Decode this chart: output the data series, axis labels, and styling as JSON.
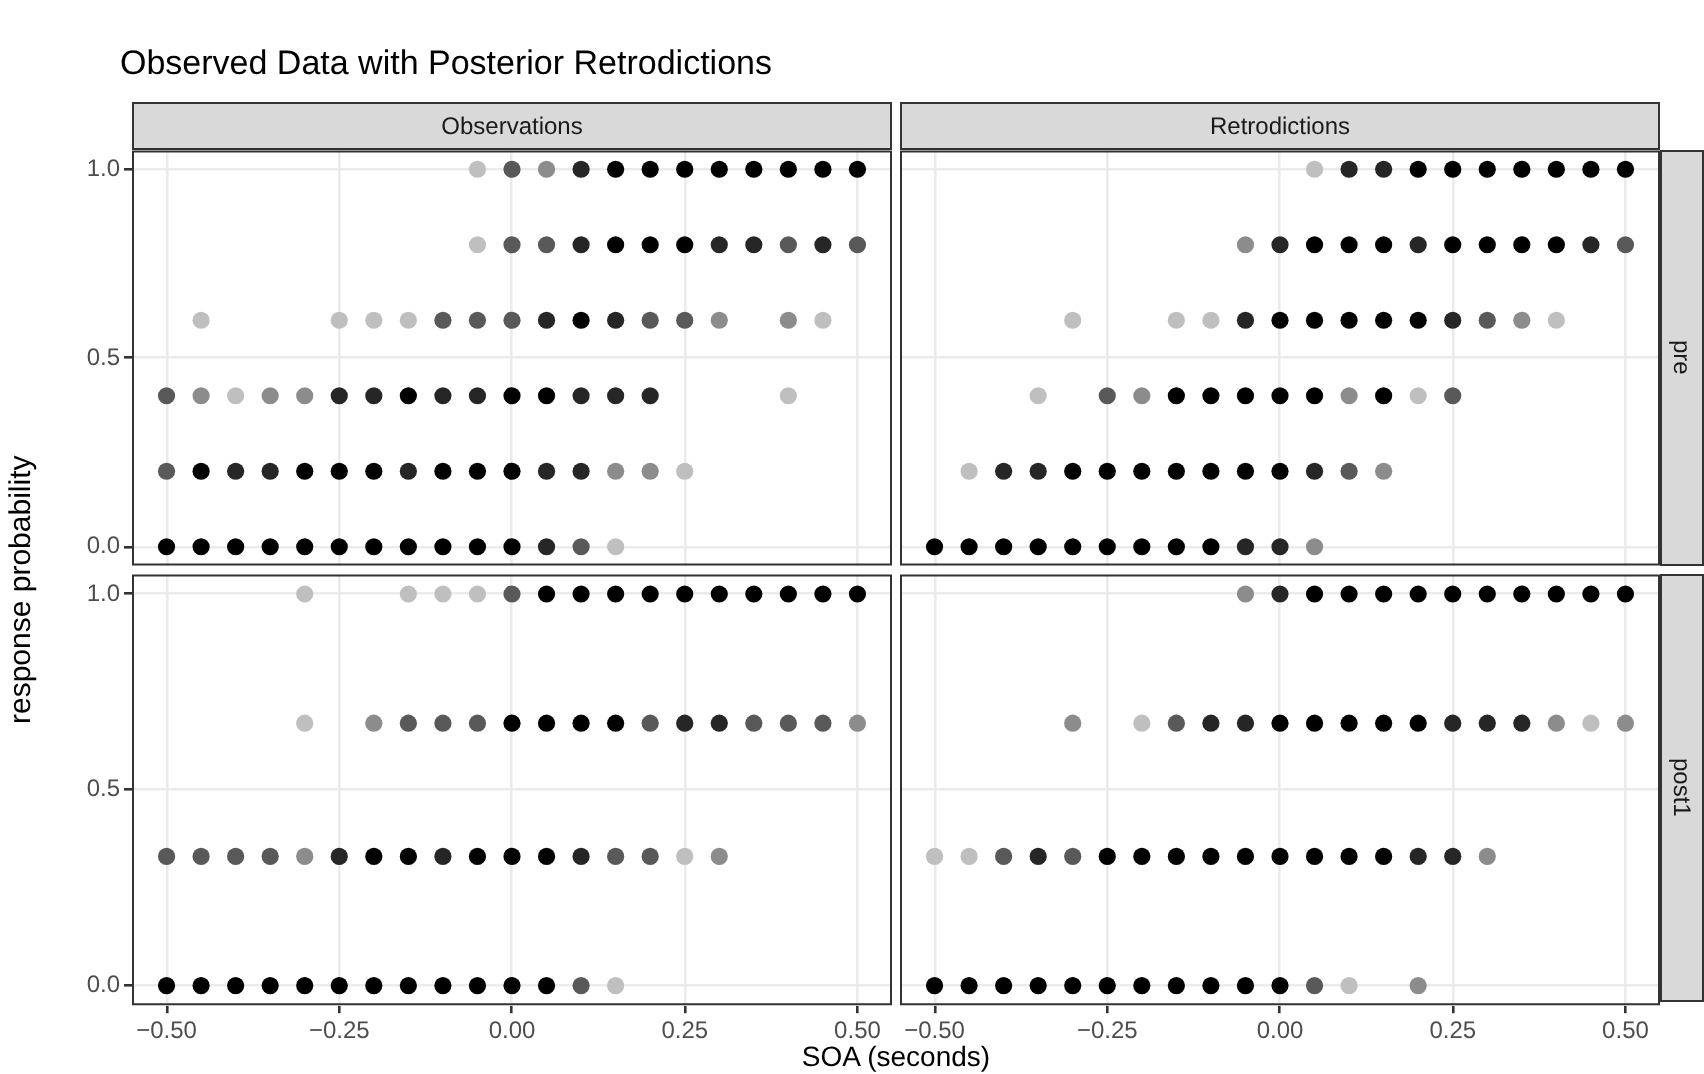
{
  "chart_data": [
    {
      "type": "scatter",
      "title": "Observed Data with Posterior Retrodictions",
      "subtitle": "Observations",
      "marker": "circle",
      "grid": true,
      "tick_labels": "y",
      "xlim": [
        -0.55,
        0.55
      ],
      "ylim": [
        -0.05,
        1.05
      ],
      "xticks": [
        {
          "value": -0.5,
          "label": null
        },
        {
          "value": -0.25,
          "label": null
        },
        {
          "value": 0,
          "label": null
        },
        {
          "value": 0.25,
          "label": null
        },
        {
          "value": 0.5,
          "label": null
        }
      ],
      "yticks": [
        {
          "value": 0,
          "label": "0.0"
        },
        {
          "value": 0.5,
          "label": "0.5"
        },
        {
          "value": 1,
          "label": "1.0"
        }
      ],
      "series": [
        {
          "x": [
            -0.05,
            0,
            0.05,
            0.1,
            0.15,
            0.2,
            0.25,
            0.3,
            0.35,
            0.4,
            0.45,
            0.5
          ],
          "values": [
            1,
            1,
            1,
            1,
            1,
            1,
            1,
            1,
            1,
            1,
            1,
            1
          ],
          "colors": [
            "#bfbfbf",
            "#595959",
            "#8c8c8c",
            "#262626",
            "#000000",
            "#000000",
            "#000000",
            "#000000",
            "#000000",
            "#000000",
            "#000000",
            "#000000"
          ]
        },
        {
          "x": [
            -0.05,
            0,
            0.05,
            0.1,
            0.15,
            0.2,
            0.25,
            0.3,
            0.35,
            0.4,
            0.45,
            0.5
          ],
          "values": [
            0.8,
            0.8,
            0.8,
            0.8,
            0.8,
            0.8,
            0.8,
            0.8,
            0.8,
            0.8,
            0.8,
            0.8
          ],
          "colors": [
            "#bfbfbf",
            "#595959",
            "#595959",
            "#262626",
            "#000000",
            "#000000",
            "#000000",
            "#262626",
            "#262626",
            "#595959",
            "#262626",
            "#595959"
          ]
        },
        {
          "x": [
            -0.45,
            -0.25,
            -0.2,
            -0.15,
            -0.1,
            -0.05,
            0,
            0.05,
            0.1,
            0.15,
            0.2,
            0.25,
            0.3,
            0.4,
            0.45
          ],
          "values": [
            0.6,
            0.6,
            0.6,
            0.6,
            0.6,
            0.6,
            0.6,
            0.6,
            0.6,
            0.6,
            0.6,
            0.6,
            0.6,
            0.6,
            0.6
          ],
          "colors": [
            "#bfbfbf",
            "#bfbfbf",
            "#bfbfbf",
            "#bfbfbf",
            "#595959",
            "#595959",
            "#595959",
            "#262626",
            "#000000",
            "#262626",
            "#595959",
            "#595959",
            "#8c8c8c",
            "#8c8c8c",
            "#bfbfbf"
          ]
        },
        {
          "x": [
            -0.5,
            -0.45,
            -0.4,
            -0.35,
            -0.3,
            -0.25,
            -0.2,
            -0.15,
            -0.1,
            -0.05,
            0,
            0.05,
            0.1,
            0.15,
            0.2,
            0.4
          ],
          "values": [
            0.4,
            0.4,
            0.4,
            0.4,
            0.4,
            0.4,
            0.4,
            0.4,
            0.4,
            0.4,
            0.4,
            0.4,
            0.4,
            0.4,
            0.4,
            0.4
          ],
          "colors": [
            "#595959",
            "#8c8c8c",
            "#bfbfbf",
            "#8c8c8c",
            "#8c8c8c",
            "#262626",
            "#262626",
            "#000000",
            "#262626",
            "#262626",
            "#000000",
            "#000000",
            "#262626",
            "#262626",
            "#262626",
            "#bfbfbf"
          ]
        },
        {
          "x": [
            -0.5,
            -0.45,
            -0.4,
            -0.35,
            -0.3,
            -0.25,
            -0.2,
            -0.15,
            -0.1,
            -0.05,
            0,
            0.05,
            0.1,
            0.15,
            0.2,
            0.25
          ],
          "values": [
            0.2,
            0.2,
            0.2,
            0.2,
            0.2,
            0.2,
            0.2,
            0.2,
            0.2,
            0.2,
            0.2,
            0.2,
            0.2,
            0.2,
            0.2,
            0.2
          ],
          "colors": [
            "#595959",
            "#000000",
            "#262626",
            "#262626",
            "#000000",
            "#000000",
            "#000000",
            "#262626",
            "#000000",
            "#000000",
            "#000000",
            "#262626",
            "#262626",
            "#8c8c8c",
            "#8c8c8c",
            "#bfbfbf"
          ]
        },
        {
          "x": [
            -0.5,
            -0.45,
            -0.4,
            -0.35,
            -0.3,
            -0.25,
            -0.2,
            -0.15,
            -0.1,
            -0.05,
            0,
            0.05,
            0.1,
            0.15
          ],
          "values": [
            0,
            0,
            0,
            0,
            0,
            0,
            0,
            0,
            0,
            0,
            0,
            0,
            0,
            0
          ],
          "colors": [
            "#000000",
            "#000000",
            "#000000",
            "#000000",
            "#000000",
            "#000000",
            "#000000",
            "#000000",
            "#000000",
            "#000000",
            "#000000",
            "#262626",
            "#595959",
            "#bfbfbf"
          ]
        }
      ]
    },
    {
      "type": "scatter",
      "subtitle": "Retrodictions",
      "y2label": "pre",
      "marker": "circle",
      "grid": true,
      "tick_labels": false,
      "xlim": [
        -0.55,
        0.55
      ],
      "ylim": [
        -0.05,
        1.05
      ],
      "xticks": [
        {
          "value": -0.5,
          "label": null
        },
        {
          "value": -0.25,
          "label": null
        },
        {
          "value": 0,
          "label": null
        },
        {
          "value": 0.25,
          "label": null
        },
        {
          "value": 0.5,
          "label": null
        }
      ],
      "yticks": [
        {
          "value": 0,
          "label": null
        },
        {
          "value": 0.5,
          "label": null
        },
        {
          "value": 1,
          "label": null
        }
      ],
      "series": [
        {
          "x": [
            0.05,
            0.1,
            0.15,
            0.2,
            0.25,
            0.3,
            0.35,
            0.4,
            0.45,
            0.5
          ],
          "values": [
            1,
            1,
            1,
            1,
            1,
            1,
            1,
            1,
            1,
            1
          ],
          "colors": [
            "#bfbfbf",
            "#262626",
            "#262626",
            "#000000",
            "#000000",
            "#000000",
            "#000000",
            "#000000",
            "#000000",
            "#000000"
          ]
        },
        {
          "x": [
            -0.05,
            0,
            0.05,
            0.1,
            0.15,
            0.2,
            0.25,
            0.3,
            0.35,
            0.4,
            0.45,
            0.5
          ],
          "values": [
            0.8,
            0.8,
            0.8,
            0.8,
            0.8,
            0.8,
            0.8,
            0.8,
            0.8,
            0.8,
            0.8,
            0.8
          ],
          "colors": [
            "#8c8c8c",
            "#262626",
            "#000000",
            "#000000",
            "#000000",
            "#262626",
            "#000000",
            "#000000",
            "#000000",
            "#000000",
            "#262626",
            "#595959"
          ]
        },
        {
          "x": [
            -0.3,
            -0.15,
            -0.1,
            -0.05,
            0,
            0.05,
            0.1,
            0.15,
            0.2,
            0.25,
            0.3,
            0.35,
            0.4
          ],
          "values": [
            0.6,
            0.6,
            0.6,
            0.6,
            0.6,
            0.6,
            0.6,
            0.6,
            0.6,
            0.6,
            0.6,
            0.6,
            0.6
          ],
          "colors": [
            "#bfbfbf",
            "#bfbfbf",
            "#bfbfbf",
            "#262626",
            "#000000",
            "#000000",
            "#000000",
            "#000000",
            "#000000",
            "#262626",
            "#595959",
            "#8c8c8c",
            "#bfbfbf"
          ]
        },
        {
          "x": [
            -0.35,
            -0.25,
            -0.2,
            -0.15,
            -0.1,
            -0.05,
            0,
            0.05,
            0.1,
            0.15,
            0.2,
            0.25
          ],
          "values": [
            0.4,
            0.4,
            0.4,
            0.4,
            0.4,
            0.4,
            0.4,
            0.4,
            0.4,
            0.4,
            0.4,
            0.4
          ],
          "colors": [
            "#bfbfbf",
            "#595959",
            "#8c8c8c",
            "#000000",
            "#000000",
            "#000000",
            "#000000",
            "#000000",
            "#8c8c8c",
            "#000000",
            "#bfbfbf",
            "#595959"
          ]
        },
        {
          "x": [
            -0.45,
            -0.4,
            -0.35,
            -0.3,
            -0.25,
            -0.2,
            -0.15,
            -0.1,
            -0.05,
            0,
            0.05,
            0.1,
            0.15
          ],
          "values": [
            0.2,
            0.2,
            0.2,
            0.2,
            0.2,
            0.2,
            0.2,
            0.2,
            0.2,
            0.2,
            0.2,
            0.2,
            0.2
          ],
          "colors": [
            "#bfbfbf",
            "#262626",
            "#262626",
            "#000000",
            "#000000",
            "#000000",
            "#000000",
            "#000000",
            "#000000",
            "#000000",
            "#262626",
            "#595959",
            "#8c8c8c"
          ]
        },
        {
          "x": [
            -0.5,
            -0.45,
            -0.4,
            -0.35,
            -0.3,
            -0.25,
            -0.2,
            -0.15,
            -0.1,
            -0.05,
            0,
            0.05
          ],
          "values": [
            0,
            0,
            0,
            0,
            0,
            0,
            0,
            0,
            0,
            0,
            0,
            0
          ],
          "colors": [
            "#000000",
            "#000000",
            "#000000",
            "#000000",
            "#000000",
            "#000000",
            "#000000",
            "#000000",
            "#000000",
            "#262626",
            "#262626",
            "#8c8c8c"
          ]
        }
      ]
    },
    {
      "type": "scatter",
      "xlabel": "SOA (seconds)",
      "ylabel": "response probability",
      "marker": "circle",
      "grid": true,
      "xlim": [
        -0.55,
        0.55
      ],
      "ylim": [
        -0.05,
        1.05
      ],
      "xticks": [
        {
          "value": -0.5,
          "label": "−0.50"
        },
        {
          "value": -0.25,
          "label": "−0.25"
        },
        {
          "value": 0,
          "label": "0.00"
        },
        {
          "value": 0.25,
          "label": "0.25"
        },
        {
          "value": 0.5,
          "label": "0.50"
        }
      ],
      "yticks": [
        {
          "value": 0,
          "label": "0.0"
        },
        {
          "value": 0.5,
          "label": "0.5"
        },
        {
          "value": 1,
          "label": "1.0"
        }
      ],
      "series": [
        {
          "x": [
            -0.3,
            -0.15,
            -0.1,
            -0.05,
            0,
            0.05,
            0.1,
            0.15,
            0.2,
            0.25,
            0.3,
            0.35,
            0.4,
            0.45,
            0.5
          ],
          "values": [
            1,
            1,
            1,
            1,
            1,
            1,
            1,
            1,
            1,
            1,
            1,
            1,
            1,
            1,
            1
          ],
          "colors": [
            "#bfbfbf",
            "#bfbfbf",
            "#bfbfbf",
            "#bfbfbf",
            "#595959",
            "#000000",
            "#000000",
            "#000000",
            "#000000",
            "#000000",
            "#000000",
            "#000000",
            "#000000",
            "#000000",
            "#000000"
          ]
        },
        {
          "x": [
            -0.3,
            -0.2,
            -0.15,
            -0.1,
            -0.05,
            0,
            0.05,
            0.1,
            0.15,
            0.2,
            0.25,
            0.3,
            0.35,
            0.4,
            0.45,
            0.5
          ],
          "values": [
            0.67,
            0.67,
            0.67,
            0.67,
            0.67,
            0.67,
            0.67,
            0.67,
            0.67,
            0.67,
            0.67,
            0.67,
            0.67,
            0.67,
            0.67,
            0.67
          ],
          "colors": [
            "#bfbfbf",
            "#8c8c8c",
            "#595959",
            "#595959",
            "#595959",
            "#000000",
            "#000000",
            "#000000",
            "#000000",
            "#595959",
            "#262626",
            "#262626",
            "#595959",
            "#595959",
            "#595959",
            "#8c8c8c"
          ]
        },
        {
          "x": [
            -0.5,
            -0.45,
            -0.4,
            -0.35,
            -0.3,
            -0.25,
            -0.2,
            -0.15,
            -0.1,
            -0.05,
            0,
            0.05,
            0.1,
            0.15,
            0.2,
            0.25,
            0.3
          ],
          "values": [
            0.33,
            0.33,
            0.33,
            0.33,
            0.33,
            0.33,
            0.33,
            0.33,
            0.33,
            0.33,
            0.33,
            0.33,
            0.33,
            0.33,
            0.33,
            0.33,
            0.33
          ],
          "colors": [
            "#595959",
            "#595959",
            "#595959",
            "#595959",
            "#8c8c8c",
            "#262626",
            "#000000",
            "#000000",
            "#262626",
            "#000000",
            "#000000",
            "#000000",
            "#262626",
            "#595959",
            "#595959",
            "#bfbfbf",
            "#8c8c8c"
          ]
        },
        {
          "x": [
            -0.5,
            -0.45,
            -0.4,
            -0.35,
            -0.3,
            -0.25,
            -0.2,
            -0.15,
            -0.1,
            -0.05,
            0,
            0.05,
            0.1,
            0.15
          ],
          "values": [
            0,
            0,
            0,
            0,
            0,
            0,
            0,
            0,
            0,
            0,
            0,
            0,
            0,
            0
          ],
          "colors": [
            "#000000",
            "#000000",
            "#000000",
            "#000000",
            "#000000",
            "#000000",
            "#000000",
            "#000000",
            "#000000",
            "#000000",
            "#000000",
            "#000000",
            "#595959",
            "#bfbfbf"
          ]
        }
      ]
    },
    {
      "type": "scatter",
      "y2label": "post1",
      "marker": "circle",
      "grid": true,
      "tick_labels": "x",
      "xlim": [
        -0.55,
        0.55
      ],
      "ylim": [
        -0.05,
        1.05
      ],
      "xticks": [
        {
          "value": -0.5,
          "label": "−0.50"
        },
        {
          "value": -0.25,
          "label": "−0.25"
        },
        {
          "value": 0,
          "label": "0.00"
        },
        {
          "value": 0.25,
          "label": "0.25"
        },
        {
          "value": 0.5,
          "label": "0.50"
        }
      ],
      "yticks": [
        {
          "value": 0,
          "label": null
        },
        {
          "value": 0.5,
          "label": null
        },
        {
          "value": 1,
          "label": null
        }
      ],
      "series": [
        {
          "x": [
            -0.05,
            0,
            0.05,
            0.1,
            0.15,
            0.2,
            0.25,
            0.3,
            0.35,
            0.4,
            0.45,
            0.5
          ],
          "values": [
            1,
            1,
            1,
            1,
            1,
            1,
            1,
            1,
            1,
            1,
            1,
            1
          ],
          "colors": [
            "#8c8c8c",
            "#262626",
            "#000000",
            "#000000",
            "#000000",
            "#000000",
            "#000000",
            "#000000",
            "#000000",
            "#000000",
            "#000000",
            "#000000"
          ]
        },
        {
          "x": [
            -0.3,
            -0.2,
            -0.15,
            -0.1,
            -0.05,
            0,
            0.05,
            0.1,
            0.15,
            0.2,
            0.25,
            0.3,
            0.35,
            0.4,
            0.45,
            0.5
          ],
          "values": [
            0.67,
            0.67,
            0.67,
            0.67,
            0.67,
            0.67,
            0.67,
            0.67,
            0.67,
            0.67,
            0.67,
            0.67,
            0.67,
            0.67,
            0.67,
            0.67
          ],
          "colors": [
            "#8c8c8c",
            "#bfbfbf",
            "#595959",
            "#262626",
            "#262626",
            "#000000",
            "#000000",
            "#000000",
            "#000000",
            "#000000",
            "#262626",
            "#262626",
            "#262626",
            "#8c8c8c",
            "#bfbfbf",
            "#8c8c8c"
          ]
        },
        {
          "x": [
            -0.5,
            -0.45,
            -0.4,
            -0.35,
            -0.3,
            -0.25,
            -0.2,
            -0.15,
            -0.1,
            -0.05,
            0,
            0.05,
            0.1,
            0.15,
            0.2,
            0.25,
            0.3
          ],
          "values": [
            0.33,
            0.33,
            0.33,
            0.33,
            0.33,
            0.33,
            0.33,
            0.33,
            0.33,
            0.33,
            0.33,
            0.33,
            0.33,
            0.33,
            0.33,
            0.33,
            0.33
          ],
          "colors": [
            "#bfbfbf",
            "#bfbfbf",
            "#595959",
            "#262626",
            "#595959",
            "#000000",
            "#000000",
            "#000000",
            "#000000",
            "#000000",
            "#000000",
            "#000000",
            "#000000",
            "#000000",
            "#262626",
            "#262626",
            "#8c8c8c"
          ]
        },
        {
          "x": [
            -0.5,
            -0.45,
            -0.4,
            -0.35,
            -0.3,
            -0.25,
            -0.2,
            -0.15,
            -0.1,
            -0.05,
            0,
            0.05,
            0.1,
            0.2
          ],
          "values": [
            0,
            0,
            0,
            0,
            0,
            0,
            0,
            0,
            0,
            0,
            0,
            0,
            0,
            0
          ],
          "colors": [
            "#000000",
            "#000000",
            "#000000",
            "#000000",
            "#000000",
            "#000000",
            "#000000",
            "#000000",
            "#000000",
            "#000000",
            "#000000",
            "#595959",
            "#bfbfbf",
            "#8c8c8c"
          ]
        }
      ]
    }
  ]
}
